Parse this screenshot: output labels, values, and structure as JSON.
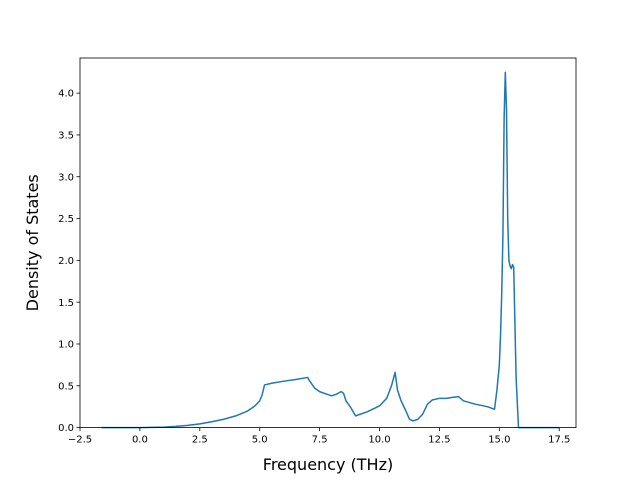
{
  "chart_data": {
    "type": "line",
    "title": "",
    "xlabel": "Frequency (THz)",
    "ylabel": "Density of States",
    "xlim": [
      -2.5,
      18.2
    ],
    "ylim": [
      0,
      4.42
    ],
    "grid": false,
    "legend": "none",
    "xticks": [
      -2.5,
      0.0,
      2.5,
      5.0,
      7.5,
      10.0,
      12.5,
      15.0,
      17.5
    ],
    "xtick_labels": [
      "−2.5",
      "0.0",
      "2.5",
      "5.0",
      "7.5",
      "10.0",
      "12.5",
      "15.0",
      "17.5"
    ],
    "yticks": [
      0.0,
      0.5,
      1.0,
      1.5,
      2.0,
      2.5,
      3.0,
      3.5,
      4.0
    ],
    "ytick_labels": [
      "0.0",
      "0.5",
      "1.0",
      "1.5",
      "2.0",
      "2.5",
      "3.0",
      "3.5",
      "4.0"
    ],
    "series": [
      {
        "color": "#1f77b4",
        "x": [
          -1.6,
          -0.5,
          0.0,
          0.5,
          1.0,
          1.5,
          2.0,
          2.5,
          3.0,
          3.5,
          4.0,
          4.5,
          4.8,
          5.0,
          5.1,
          5.2,
          5.5,
          6.0,
          6.5,
          7.0,
          7.1,
          7.3,
          7.5,
          7.8,
          8.0,
          8.2,
          8.4,
          8.5,
          8.6,
          8.8,
          9.0,
          9.5,
          10.0,
          10.3,
          10.5,
          10.65,
          10.75,
          10.9,
          11.1,
          11.25,
          11.4,
          11.6,
          11.8,
          12.0,
          12.2,
          12.5,
          12.8,
          13.0,
          13.3,
          13.5,
          14.0,
          14.5,
          14.8,
          14.9,
          15.0,
          15.05,
          15.1,
          15.15,
          15.2,
          15.25,
          15.3,
          15.35,
          15.4,
          15.45,
          15.5,
          15.55,
          15.6,
          15.7,
          15.8,
          16.2,
          17.5
        ],
        "y": [
          0.0,
          0.0,
          0.0,
          0.002,
          0.006,
          0.014,
          0.027,
          0.045,
          0.07,
          0.1,
          0.14,
          0.2,
          0.26,
          0.32,
          0.39,
          0.51,
          0.53,
          0.555,
          0.575,
          0.6,
          0.55,
          0.47,
          0.43,
          0.4,
          0.38,
          0.4,
          0.43,
          0.41,
          0.32,
          0.24,
          0.14,
          0.19,
          0.26,
          0.35,
          0.5,
          0.66,
          0.45,
          0.32,
          0.2,
          0.1,
          0.08,
          0.1,
          0.16,
          0.28,
          0.33,
          0.35,
          0.35,
          0.36,
          0.37,
          0.32,
          0.28,
          0.25,
          0.22,
          0.45,
          0.75,
          1.1,
          1.6,
          2.3,
          3.7,
          4.25,
          3.8,
          2.5,
          2.0,
          1.93,
          1.9,
          1.95,
          1.92,
          0.6,
          0.0,
          0.0,
          0.0
        ]
      }
    ]
  }
}
